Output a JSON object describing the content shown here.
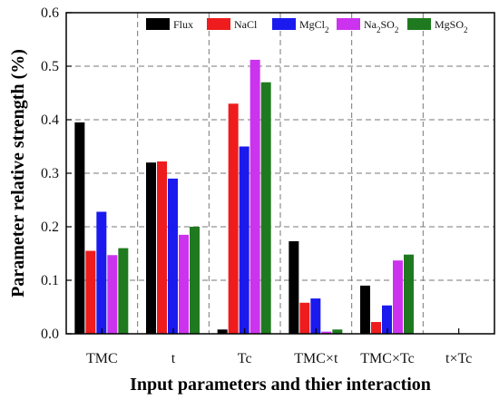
{
  "chart_data": {
    "type": "bar",
    "title": "",
    "xlabel": "Input parameters and thier interaction",
    "ylabel": "Parameter relative strength (%)",
    "ylim": [
      0,
      0.6
    ],
    "yticks": [
      "0.0",
      "0.1",
      "0.2",
      "0.3",
      "0.4",
      "0.5",
      "0.6"
    ],
    "yticks_values": [
      0,
      0.1,
      0.2,
      0.3,
      0.4,
      0.5,
      0.6
    ],
    "categories": [
      "TMC",
      "t",
      "Tc",
      "TMC×t",
      "TMC×Tc",
      "t×Tc"
    ],
    "grid": true,
    "legend_position": "top",
    "series": [
      {
        "name": "Flux",
        "base": "",
        "sub": "",
        "color": "#000000",
        "values": [
          0.395,
          0.32,
          0.008,
          0.173,
          0.09,
          0.0
        ]
      },
      {
        "name": "NaCl",
        "base": "NaCl",
        "sub": "",
        "color": "#ee1c1c",
        "values": [
          0.155,
          0.322,
          0.43,
          0.058,
          0.022,
          0.0
        ]
      },
      {
        "name": "MgCl2",
        "base": "MgCl",
        "sub": "2",
        "color": "#1a1aee",
        "values": [
          0.228,
          0.29,
          0.35,
          0.066,
          0.053,
          0.0
        ]
      },
      {
        "name": "Na2SO2",
        "base": "Na",
        "sub": "2",
        "tail": "SO",
        "sub2": "2",
        "color": "#cc33ee",
        "values": [
          0.147,
          0.185,
          0.512,
          0.004,
          0.137,
          0.0
        ]
      },
      {
        "name": "MgSO2",
        "base": "MgSO",
        "sub": "2",
        "color": "#1f7a1f",
        "values": [
          0.16,
          0.2,
          0.47,
          0.008,
          0.148,
          0.0
        ]
      }
    ],
    "legend_labels": [
      "Flux",
      "NaCl",
      "MgCl",
      "2",
      "Na",
      "2",
      "SO",
      "2",
      "MgSO",
      "2"
    ]
  }
}
